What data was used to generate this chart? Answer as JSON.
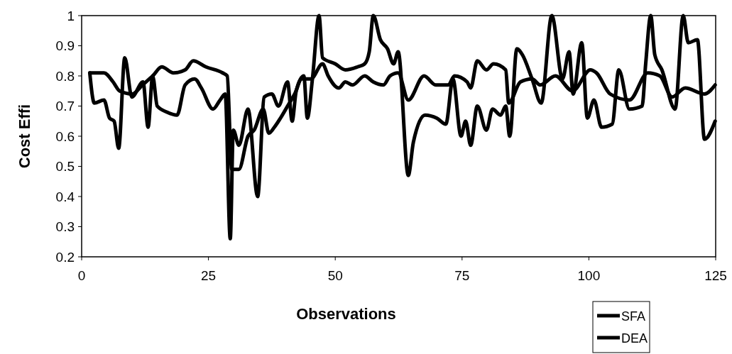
{
  "chart_data": {
    "type": "line",
    "xlabel": "Observations",
    "ylabel": "Cost Effi",
    "xlim": [
      0,
      125
    ],
    "xticks": [
      0,
      25,
      50,
      75,
      100,
      125
    ],
    "ylim": [
      0.2,
      1
    ],
    "yticks": [
      0.2,
      0.3,
      0.4,
      0.5,
      0.6,
      0.7,
      0.8,
      0.9,
      1
    ],
    "grid": false,
    "legend": "bottom right",
    "marker": "none",
    "line_style": "solid",
    "series": [
      {
        "name": "SFA",
        "color": "#000000",
        "x": [
          1.6,
          4.4,
          6.2,
          7.5,
          10,
          12,
          14,
          15.8,
          18.1,
          20.4,
          22,
          24.5,
          27.8,
          28.7,
          29.6,
          31,
          32.8,
          34,
          35.8,
          36.9,
          38,
          39.2,
          40.6,
          42,
          43.4,
          45.2,
          47.5,
          48.6,
          50.7,
          52,
          53.4,
          55.8,
          57.5,
          59.5,
          60.8,
          62.4,
          64.4,
          67.5,
          69.8,
          72.3,
          73.5,
          76,
          76.7,
          78,
          79.8,
          81.2,
          83.6,
          84.2,
          86.5,
          88.8,
          90.4,
          93.4,
          96.8,
          100.3,
          101.5,
          104.2,
          108,
          111.6,
          114,
          116.4,
          119,
          122.8,
          124.9
        ],
        "values": [
          0.81,
          0.81,
          0.78,
          0.75,
          0.74,
          0.77,
          0.8,
          0.83,
          0.81,
          0.82,
          0.85,
          0.83,
          0.81,
          0.8,
          0.49,
          0.49,
          0.6,
          0.62,
          0.69,
          0.61,
          0.63,
          0.66,
          0.7,
          0.74,
          0.79,
          0.79,
          0.84,
          0.8,
          0.76,
          0.78,
          0.77,
          0.8,
          0.78,
          0.77,
          0.8,
          0.81,
          0.72,
          0.8,
          0.77,
          0.77,
          0.8,
          0.78,
          0.76,
          0.85,
          0.82,
          0.84,
          0.82,
          0.71,
          0.78,
          0.79,
          0.77,
          0.8,
          0.75,
          0.82,
          0.81,
          0.74,
          0.72,
          0.81,
          0.8,
          0.73,
          0.76,
          0.74,
          0.77
        ]
      },
      {
        "name": "DEA",
        "color": "#000000",
        "x": [
          1.6,
          2.5,
          4.4,
          5.5,
          6.4,
          7.3,
          8.5,
          9.9,
          12.1,
          13.1,
          14,
          14.9,
          16.8,
          18.8,
          20.4,
          22.3,
          23.6,
          25.9,
          27.3,
          28.3,
          29.3,
          29.9,
          31,
          32.8,
          34.7,
          36,
          37.5,
          38.8,
          40.6,
          41.5,
          42.3,
          43.8,
          44.5,
          45.5,
          46.8,
          47.5,
          50,
          52,
          54.4,
          55.8,
          56.7,
          57.5,
          58.9,
          60.3,
          61.5,
          62.4,
          64.4,
          65.4,
          67.7,
          70,
          71.8,
          73.2,
          74.8,
          75.7,
          76.7,
          78,
          79.8,
          81,
          82.6,
          83.6,
          84.4,
          85.8,
          86.9,
          88.8,
          90.6,
          92.7,
          94.8,
          96.1,
          96.9,
          98.6,
          99.7,
          101,
          102.5,
          104.6,
          105.9,
          108,
          110.5,
          111.2,
          112.2,
          113,
          114.4,
          117,
          118.6,
          119.6,
          121.4,
          122.8,
          124.9
        ],
        "values": [
          0.81,
          0.71,
          0.72,
          0.66,
          0.65,
          0.56,
          0.86,
          0.73,
          0.78,
          0.63,
          0.8,
          0.7,
          0.68,
          0.67,
          0.77,
          0.79,
          0.76,
          0.69,
          0.72,
          0.74,
          0.26,
          0.62,
          0.57,
          0.69,
          0.4,
          0.73,
          0.74,
          0.7,
          0.78,
          0.65,
          0.75,
          0.8,
          0.66,
          0.79,
          1,
          0.86,
          0.84,
          0.82,
          0.83,
          0.84,
          0.88,
          1,
          0.92,
          0.89,
          0.84,
          0.88,
          0.47,
          0.58,
          0.67,
          0.66,
          0.64,
          0.79,
          0.6,
          0.65,
          0.57,
          0.7,
          0.62,
          0.69,
          0.67,
          0.7,
          0.6,
          0.89,
          0.87,
          0.79,
          0.71,
          1,
          0.79,
          0.88,
          0.74,
          0.91,
          0.66,
          0.72,
          0.63,
          0.64,
          0.82,
          0.69,
          0.7,
          0.84,
          1,
          0.87,
          0.82,
          0.69,
          1,
          0.91,
          0.92,
          0.59,
          0.65
        ]
      }
    ]
  }
}
